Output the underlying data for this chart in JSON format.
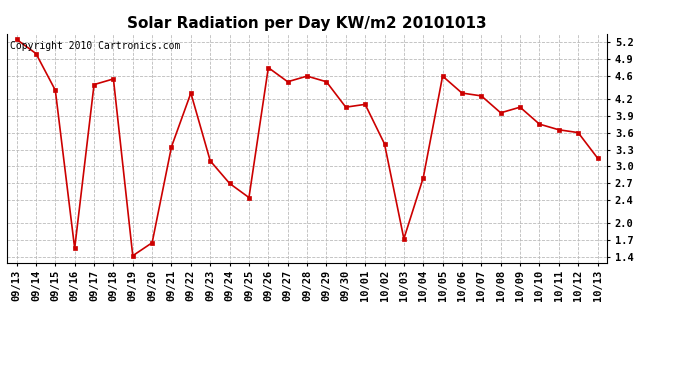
{
  "title": "Solar Radiation per Day KW/m2 20101013",
  "copyright_text": "Copyright 2010 Cartronics.com",
  "x_labels": [
    "09/13",
    "09/14",
    "09/15",
    "09/16",
    "09/17",
    "09/18",
    "09/19",
    "09/20",
    "09/21",
    "09/22",
    "09/23",
    "09/24",
    "09/25",
    "09/26",
    "09/27",
    "09/28",
    "09/29",
    "09/30",
    "10/01",
    "10/02",
    "10/03",
    "10/04",
    "10/05",
    "10/06",
    "10/07",
    "10/08",
    "10/09",
    "10/10",
    "10/11",
    "10/12",
    "10/13"
  ],
  "y_values": [
    5.25,
    5.0,
    4.35,
    1.55,
    4.45,
    4.55,
    1.42,
    1.65,
    3.35,
    4.3,
    3.1,
    2.7,
    2.45,
    4.75,
    4.5,
    4.6,
    4.5,
    4.05,
    4.1,
    3.4,
    1.72,
    2.8,
    4.6,
    4.3,
    4.25,
    3.95,
    4.05,
    3.75,
    3.65,
    3.6,
    3.15
  ],
  "ylim": [
    1.3,
    5.35
  ],
  "yticks": [
    1.4,
    1.7,
    2.0,
    2.4,
    2.7,
    3.0,
    3.3,
    3.6,
    3.9,
    4.2,
    4.6,
    4.9,
    5.2
  ],
  "line_color": "#cc0000",
  "marker": "s",
  "marker_size": 3,
  "background_color": "#ffffff",
  "plot_bg_color": "#ffffff",
  "grid_color": "#bbbbbb",
  "title_fontsize": 11,
  "tick_fontsize": 7.5,
  "copyright_fontsize": 7
}
